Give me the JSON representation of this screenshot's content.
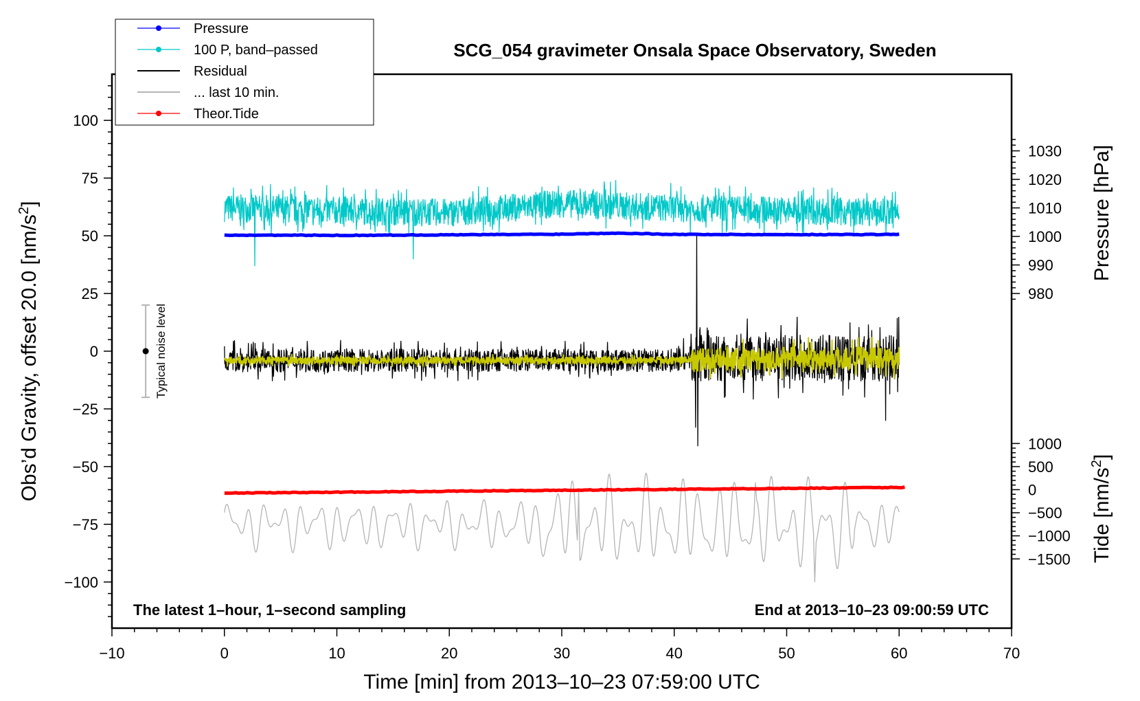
{
  "chart_data": {
    "type": "line",
    "title": "SCG_054 gravimeter Onsala Space Observatory, Sweden",
    "xlabel": "Time [min] from 2013–10–23 07:59:00 UTC",
    "ylabel_main": "Obs’d Gravity, offset 20.0 [nm/s",
    "ylabel_main_sup": "2",
    "ylabel_main_close": "]",
    "ylabel_pressure": "Pressure [hPa]",
    "ylabel_tide": "Tide [nm/s",
    "ylabel_tide_sup": "2",
    "ylabel_tide_close": "]",
    "xlim": [
      -10,
      70
    ],
    "ylim": [
      -120,
      120
    ],
    "x_ticks": [
      -10,
      0,
      10,
      20,
      30,
      40,
      50,
      60,
      70
    ],
    "x_tick_labels": [
      "−10",
      "0",
      "10",
      "20",
      "30",
      "40",
      "50",
      "60",
      "70"
    ],
    "y_ticks": [
      -100,
      -75,
      -50,
      -25,
      0,
      25,
      50,
      75,
      100
    ],
    "y_tick_labels": [
      "−100",
      "−75",
      "−50",
      "−25",
      "0",
      "25",
      "50",
      "75",
      "100"
    ],
    "pressure_axis": {
      "ticks": [
        980,
        990,
        1000,
        1010,
        1020,
        1030
      ],
      "tick_labels": [
        "980",
        "990",
        "1000",
        "1010",
        "1020",
        "1030"
      ],
      "at_main_y": [
        25.0,
        37.4,
        49.7,
        62.1,
        74.5,
        86.8
      ]
    },
    "tide_axis": {
      "ticks": [
        -1500,
        -1000,
        -500,
        0,
        500,
        1000
      ],
      "tick_labels": [
        "−1500",
        "−1000",
        "−500",
        "0",
        "500",
        "1000"
      ],
      "main_y_per_unit": 0.02,
      "main_y_at_zero": -60
    },
    "annotation_bottom_left": "The latest 1–hour, 1–second sampling",
    "annotation_bottom_right": "End at 2013–10–23 09:00:59 UTC",
    "noise_bar": {
      "x": -7,
      "center": 0,
      "half_range": 20,
      "label": "Typical noise level"
    },
    "legend": [
      {
        "label": "Pressure",
        "color": "#0000ff",
        "marker": true
      },
      {
        "label": "100 P, band–passed",
        "color": "#00c8c8",
        "marker": true
      },
      {
        "label": "Residual",
        "color": "#000000",
        "marker": false
      },
      {
        "label": "... last 10 min.",
        "color": "#b4b4b4",
        "marker": false
      },
      {
        "label": "Theor.Tide",
        "color": "#ff0000",
        "marker": true
      }
    ],
    "series": [
      {
        "name": "Pressure",
        "color": "#0000ff",
        "style": "thick",
        "x": [
          0,
          10,
          20,
          30,
          35,
          40,
          50,
          60
        ],
        "y": [
          50.3,
          50.2,
          50.4,
          50.7,
          51.2,
          50.6,
          50.5,
          50.6
        ]
      },
      {
        "name": "100 P, band–passed",
        "color": "#00c8c8",
        "style": "noisy",
        "x": [
          0,
          10,
          20,
          30,
          40,
          50,
          60
        ],
        "y": [
          62,
          61,
          60,
          64,
          62,
          61,
          60
        ],
        "noise_amplitude": 6,
        "spikes": [
          {
            "x": 2.7,
            "y": 37
          },
          {
            "x": 16.8,
            "y": 40
          },
          {
            "x": 34.8,
            "y": 74
          },
          {
            "x": 23.4,
            "y": 71
          }
        ]
      },
      {
        "name": "Residual",
        "color": "#000000",
        "style": "noisy",
        "x": [
          0,
          10,
          20,
          30,
          40,
          41.5,
          50,
          60
        ],
        "y": [
          -4,
          -4,
          -4,
          -4,
          -4,
          -3,
          -3,
          -3
        ],
        "noise_amplitude": 5,
        "noise_amplitude_after_41": 10,
        "spikes": [
          {
            "x": 42.0,
            "y": 50
          },
          {
            "x": 42.1,
            "y": -41
          },
          {
            "x": 41.9,
            "y": -33
          },
          {
            "x": 58.8,
            "y": -30
          },
          {
            "x": 46.5,
            "y": 14
          }
        ]
      },
      {
        "name": "Residual smoothed",
        "color": "#c8c800",
        "style": "noisy",
        "x": [
          0,
          10,
          20,
          30,
          40,
          50,
          60
        ],
        "y": [
          -4,
          -4,
          -4,
          -4,
          -4,
          -3,
          -3
        ],
        "noise_amplitude": 1.5,
        "noise_amplitude_after_41": 5
      },
      {
        "name": "... last 10 min.",
        "color": "#b4b4b4",
        "style": "oscillating",
        "x": [
          0,
          60
        ],
        "y": [
          -75,
          -75
        ],
        "amplitude": 10,
        "amplitude_mid": 18,
        "extremes": [
          {
            "x": 52.5,
            "y": -100
          },
          {
            "x": 31.5,
            "y": -60
          },
          {
            "x": 47.2,
            "y": -57
          }
        ]
      },
      {
        "name": "Theor.Tide",
        "color": "#ff0000",
        "style": "thick",
        "x": [
          0,
          60.5
        ],
        "y": [
          -61.5,
          -59
        ]
      }
    ]
  }
}
